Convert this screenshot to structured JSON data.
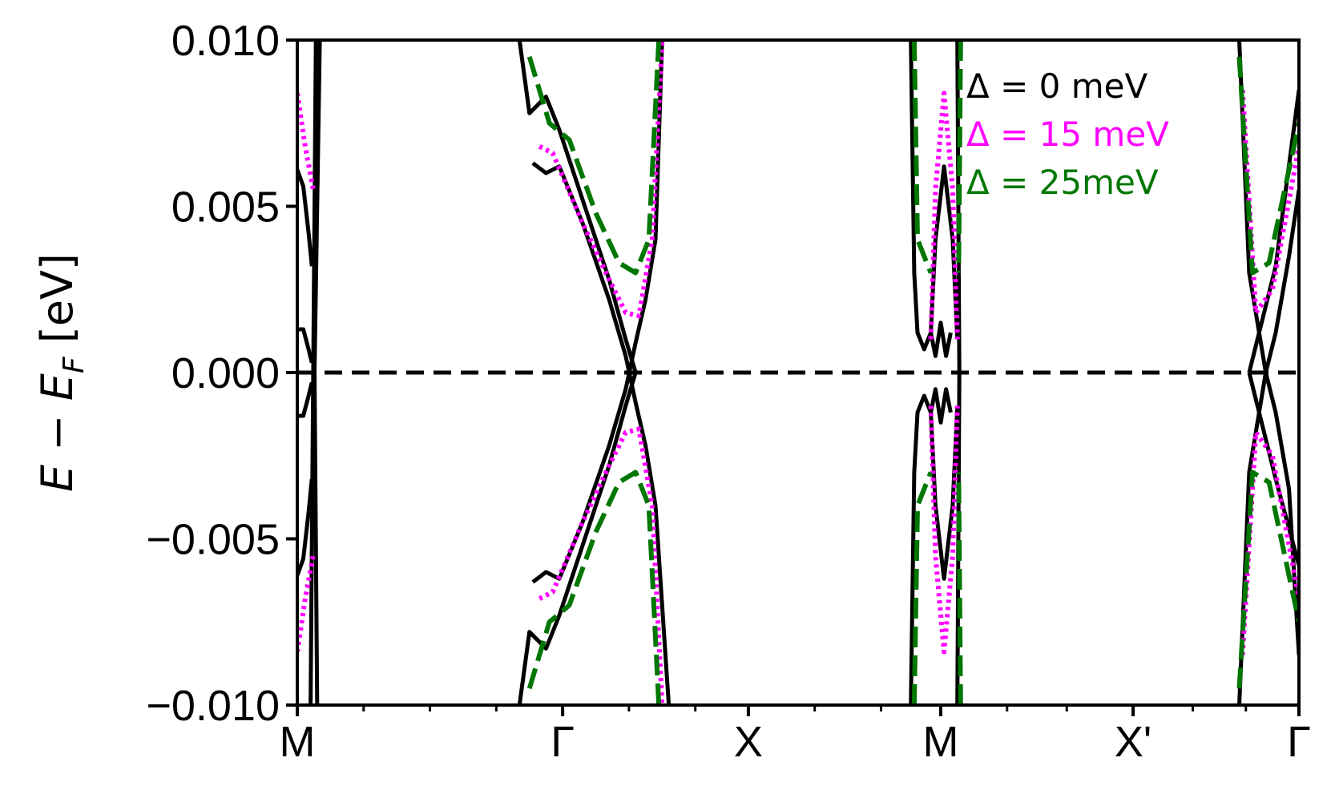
{
  "chart_data": {
    "type": "line",
    "title": "",
    "xlabel": "",
    "ylabel": {
      "base": "E − E",
      "sub": "F",
      "unit": " [eV]"
    },
    "xlim": [
      0,
      15.1
    ],
    "ylim": [
      -0.01,
      0.01
    ],
    "x_ticks": [
      {
        "x": 0,
        "label": "M"
      },
      {
        "x": 4,
        "label": "Γ"
      },
      {
        "x": 6.8,
        "label": "X"
      },
      {
        "x": 9.7,
        "label": "M"
      },
      {
        "x": 12.6,
        "label": "X'"
      },
      {
        "x": 15.1,
        "label": "Γ"
      }
    ],
    "x_minor_ticks": [
      1,
      2,
      3,
      5,
      6,
      7.8,
      8.8,
      10.7,
      11.6,
      13.5,
      14.3
    ],
    "y_ticks": [
      {
        "v": 0.01,
        "label": "0.010"
      },
      {
        "v": 0.005,
        "label": "0.005"
      },
      {
        "v": 0.0,
        "label": "0.000"
      },
      {
        "v": -0.005,
        "label": "−0.005"
      },
      {
        "v": -0.01,
        "label": "−0.010"
      }
    ],
    "fermi_line": 0.0,
    "legend": {
      "placement": "top-right",
      "entries": [
        {
          "label": "Δ = 0 meV",
          "color": "#000000"
        },
        {
          "label": "Δ = 15 meV",
          "color": "#ff00ff"
        },
        {
          "label": "Δ = 25meV",
          "color": "#007700"
        }
      ]
    },
    "series": [
      {
        "color": "#000000",
        "style": "solid",
        "curves": [
          [
            [
              0,
              0.0061
            ],
            [
              0.09,
              0.0056
            ],
            [
              0.17,
              0.0042
            ],
            [
              0.22,
              0.0032
            ]
          ],
          [
            [
              0,
              0.0013
            ],
            [
              0.09,
              0.0013
            ],
            [
              0.17,
              0.0007
            ],
            [
              0.22,
              0.0003
            ]
          ],
          [
            [
              0,
              -0.0013
            ],
            [
              0.09,
              -0.0013
            ],
            [
              0.17,
              -0.0007
            ],
            [
              0.22,
              -0.0003
            ]
          ],
          [
            [
              0,
              -0.0061
            ],
            [
              0.09,
              -0.0056
            ],
            [
              0.17,
              -0.0042
            ],
            [
              0.22,
              -0.0032
            ]
          ],
          [
            [
              0.2,
              -0.01
            ],
            [
              0.24,
              0.0
            ],
            [
              0.28,
              0.01
            ]
          ],
          [
            [
              0.3,
              -0.01
            ],
            [
              0.26,
              0.0
            ],
            [
              0.34,
              0.01
            ]
          ],
          [
            [
              3.35,
              0.01
            ],
            [
              3.5,
              0.0078
            ],
            [
              3.75,
              0.0083
            ],
            [
              3.95,
              0.0073
            ],
            [
              4.3,
              0.0052
            ],
            [
              4.7,
              0.0028
            ],
            [
              4.95,
              0.001
            ],
            [
              5.1,
              0.0
            ]
          ],
          [
            [
              3.55,
              0.0063
            ],
            [
              3.75,
              0.006
            ],
            [
              3.95,
              0.0062
            ],
            [
              4.3,
              0.0045
            ],
            [
              4.7,
              0.0022
            ],
            [
              4.95,
              0.0005
            ],
            [
              5.1,
              -0.0009
            ],
            [
              5.25,
              -0.0022
            ],
            [
              5.4,
              -0.004
            ],
            [
              5.6,
              -0.01
            ]
          ],
          [
            [
              5.5,
              0.01
            ],
            [
              5.4,
              0.004
            ],
            [
              5.25,
              0.0022
            ],
            [
              5.1,
              0.0009
            ],
            [
              4.95,
              -0.0005
            ],
            [
              4.7,
              -0.0022
            ],
            [
              4.3,
              -0.0045
            ],
            [
              3.95,
              -0.0062
            ],
            [
              3.75,
              -0.006
            ],
            [
              3.55,
              -0.0063
            ]
          ],
          [
            [
              5.1,
              0.0
            ],
            [
              4.95,
              -0.001
            ],
            [
              4.7,
              -0.0028
            ],
            [
              4.3,
              -0.0052
            ],
            [
              3.95,
              -0.0073
            ],
            [
              3.75,
              -0.0083
            ],
            [
              3.5,
              -0.0078
            ],
            [
              3.35,
              -0.01
            ]
          ],
          [
            [
              9.25,
              0.01
            ],
            [
              9.3,
              0.003
            ],
            [
              9.35,
              0.0012
            ],
            [
              9.45,
              0.0007
            ],
            [
              9.55,
              0.0012
            ],
            [
              9.62,
              0.0005
            ],
            [
              9.7,
              0.0015
            ],
            [
              9.78,
              0.0005
            ],
            [
              9.85,
              0.0012
            ]
          ],
          [
            [
              9.25,
              -0.01
            ],
            [
              9.3,
              -0.003
            ],
            [
              9.35,
              -0.0012
            ],
            [
              9.45,
              -0.0007
            ],
            [
              9.55,
              -0.0012
            ],
            [
              9.62,
              -0.0005
            ],
            [
              9.7,
              -0.0015
            ],
            [
              9.78,
              -0.0005
            ],
            [
              9.85,
              -0.0012
            ]
          ],
          [
            [
              9.55,
              0.0012
            ],
            [
              9.62,
              0.004
            ],
            [
              9.75,
              0.0062
            ],
            [
              9.88,
              0.004
            ],
            [
              9.95,
              0.001
            ]
          ],
          [
            [
              9.55,
              -0.0012
            ],
            [
              9.62,
              -0.004
            ],
            [
              9.75,
              -0.0062
            ],
            [
              9.88,
              -0.004
            ],
            [
              9.95,
              -0.001
            ]
          ],
          [
            [
              9.95,
              0.01
            ],
            [
              9.98,
              0.0
            ],
            [
              9.95,
              -0.01
            ]
          ],
          [
            [
              14.6,
              0.0
            ],
            [
              14.75,
              0.0012
            ],
            [
              14.95,
              0.0035
            ],
            [
              15.1,
              0.0055
            ]
          ],
          [
            [
              14.35,
              0.0
            ],
            [
              14.5,
              -0.0012
            ],
            [
              14.75,
              -0.0032
            ],
            [
              15.1,
              -0.0058
            ]
          ],
          [
            [
              14.35,
              0.0
            ],
            [
              14.5,
              0.0012
            ],
            [
              14.75,
              0.0032
            ],
            [
              15.1,
              0.0085
            ]
          ],
          [
            [
              14.6,
              0.0
            ],
            [
              14.75,
              -0.0012
            ],
            [
              14.95,
              -0.0035
            ],
            [
              15.1,
              -0.0085
            ]
          ],
          [
            [
              14.2,
              0.01
            ],
            [
              14.35,
              0.003
            ],
            [
              14.6,
              0.0
            ]
          ],
          [
            [
              14.2,
              -0.01
            ],
            [
              14.35,
              -0.003
            ],
            [
              14.6,
              0.0
            ]
          ]
        ]
      },
      {
        "color": "#ff00ff",
        "style": "dotted",
        "curves": [
          [
            [
              0,
              0.0084
            ],
            [
              0.12,
              0.0068
            ],
            [
              0.24,
              0.0055
            ]
          ],
          [
            [
              0,
              -0.0084
            ],
            [
              0.12,
              -0.0068
            ],
            [
              0.24,
              -0.0055
            ]
          ],
          [
            [
              3.65,
              0.0068
            ],
            [
              3.85,
              0.0066
            ],
            [
              4.3,
              0.0045
            ],
            [
              4.7,
              0.0028
            ],
            [
              4.95,
              0.0018
            ],
            [
              5.15,
              0.0017
            ],
            [
              5.35,
              0.004
            ],
            [
              5.5,
              0.01
            ]
          ],
          [
            [
              3.65,
              -0.0068
            ],
            [
              3.85,
              -0.0066
            ],
            [
              4.3,
              -0.0045
            ],
            [
              4.7,
              -0.0028
            ],
            [
              4.95,
              -0.0018
            ],
            [
              5.15,
              -0.0017
            ],
            [
              5.35,
              -0.004
            ],
            [
              5.5,
              -0.01
            ]
          ],
          [
            [
              9.55,
              0.001
            ],
            [
              9.62,
              0.0055
            ],
            [
              9.75,
              0.0084
            ],
            [
              9.88,
              0.0055
            ],
            [
              9.95,
              0.001
            ]
          ],
          [
            [
              9.55,
              -0.001
            ],
            [
              9.62,
              -0.0055
            ],
            [
              9.75,
              -0.0084
            ],
            [
              9.88,
              -0.0055
            ],
            [
              9.95,
              -0.001
            ]
          ],
          [
            [
              14.25,
              0.0085
            ],
            [
              14.45,
              0.0018
            ],
            [
              14.7,
              0.0025
            ],
            [
              15.1,
              0.0068
            ]
          ],
          [
            [
              14.25,
              -0.0085
            ],
            [
              14.45,
              -0.0018
            ],
            [
              14.7,
              -0.0025
            ],
            [
              15.1,
              -0.0068
            ]
          ]
        ]
      },
      {
        "color": "#007700",
        "style": "dashed",
        "curves": [
          [
            [
              3.5,
              0.0095
            ],
            [
              3.8,
              0.0075
            ],
            [
              4.1,
              0.007
            ],
            [
              4.5,
              0.0048
            ],
            [
              4.85,
              0.0033
            ],
            [
              5.1,
              0.003
            ],
            [
              5.3,
              0.004
            ],
            [
              5.45,
              0.01
            ]
          ],
          [
            [
              3.5,
              -0.0095
            ],
            [
              3.8,
              -0.0075
            ],
            [
              4.1,
              -0.007
            ],
            [
              4.5,
              -0.0048
            ],
            [
              4.85,
              -0.0033
            ],
            [
              5.1,
              -0.003
            ],
            [
              5.3,
              -0.004
            ],
            [
              5.45,
              -0.01
            ]
          ],
          [
            [
              9.3,
              0.01
            ],
            [
              9.35,
              0.004
            ],
            [
              9.55,
              0.003
            ]
          ],
          [
            [
              9.3,
              -0.01
            ],
            [
              9.35,
              -0.004
            ],
            [
              9.55,
              -0.003
            ]
          ],
          [
            [
              10.0,
              0.01
            ],
            [
              9.97,
              0.003
            ]
          ],
          [
            [
              10.0,
              -0.01
            ],
            [
              9.97,
              -0.003
            ]
          ],
          [
            [
              14.2,
              0.0095
            ],
            [
              14.4,
              0.003
            ],
            [
              14.65,
              0.0033
            ],
            [
              15.1,
              0.0075
            ]
          ],
          [
            [
              14.2,
              -0.0095
            ],
            [
              14.4,
              -0.003
            ],
            [
              14.65,
              -0.0033
            ],
            [
              15.1,
              -0.0075
            ]
          ]
        ]
      }
    ]
  }
}
